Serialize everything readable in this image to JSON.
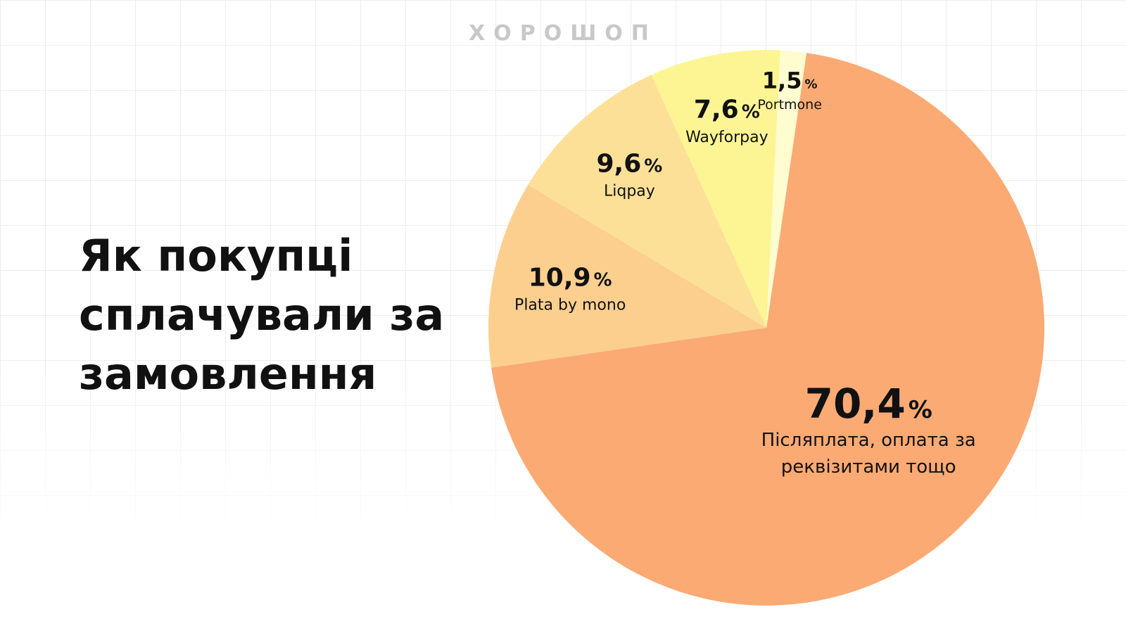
{
  "brand": "ХОРОШОП",
  "title_lines": [
    "Як покупці",
    "сплачували за",
    "замовлення"
  ],
  "chart_data": {
    "type": "pie",
    "title": "Як покупці сплачували за замовлення",
    "percent_sign": "%",
    "slices": [
      {
        "value": 70.4,
        "value_label": "70,4",
        "label_lines": [
          "Післяплата, оплата за",
          "реквізитами тощо"
        ],
        "color": "#fbaa74"
      },
      {
        "value": 10.9,
        "value_label": "10,9",
        "label_lines": [
          "Plata by mono"
        ],
        "color": "#fdcf8f"
      },
      {
        "value": 9.6,
        "value_label": "9,6",
        "label_lines": [
          "Liqpay"
        ],
        "color": "#fde098"
      },
      {
        "value": 7.6,
        "value_label": "7,6",
        "label_lines": [
          "Wayforpay"
        ],
        "color": "#fdf593"
      },
      {
        "value": 1.5,
        "value_label": "1,5",
        "label_lines": [
          "Portmone"
        ],
        "color": "#fffdd0"
      }
    ]
  }
}
